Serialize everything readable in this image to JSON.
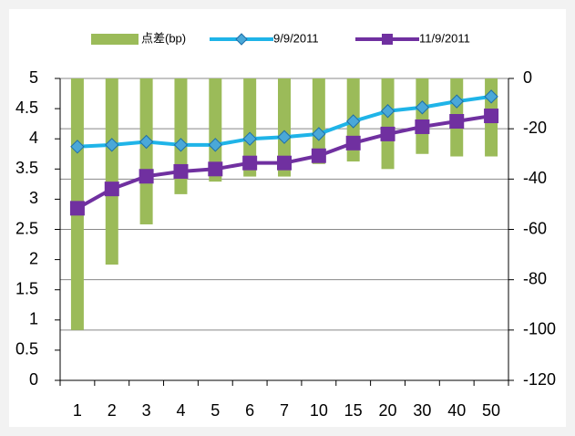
{
  "chart_data": {
    "type": "combo",
    "categories": [
      "1",
      "2",
      "3",
      "4",
      "5",
      "6",
      "7",
      "10",
      "15",
      "20",
      "30",
      "40",
      "50"
    ],
    "series": [
      {
        "name": "点差(bp)",
        "type": "bar",
        "axis": "y2",
        "color": "#9bbb59",
        "values": [
          -100,
          -74,
          -58,
          -46,
          -41,
          -39,
          -39,
          -34,
          -33,
          -36,
          -30,
          -31,
          -31
        ]
      },
      {
        "name": "9/9/2011",
        "type": "line",
        "marker": "diamond",
        "color": "#1fb4e8",
        "values": [
          3.87,
          3.9,
          3.95,
          3.9,
          3.9,
          4.0,
          4.03,
          4.08,
          4.29,
          4.46,
          4.52,
          4.62,
          4.7
        ]
      },
      {
        "name": "11/9/2011",
        "type": "line",
        "marker": "square",
        "color": "#7030a0",
        "values": [
          2.85,
          3.17,
          3.38,
          3.46,
          3.5,
          3.6,
          3.6,
          3.72,
          3.93,
          4.08,
          4.2,
          4.29,
          4.38
        ]
      }
    ],
    "ylim": [
      0,
      5
    ],
    "yticks": [
      0,
      0.5,
      1,
      1.5,
      2,
      2.5,
      3,
      3.5,
      4,
      4.5,
      5
    ],
    "y2lim": [
      -120,
      0
    ],
    "y2ticks": [
      -120,
      -100,
      -80,
      -60,
      -40,
      -20,
      0
    ],
    "grid": true,
    "legend": "top"
  }
}
